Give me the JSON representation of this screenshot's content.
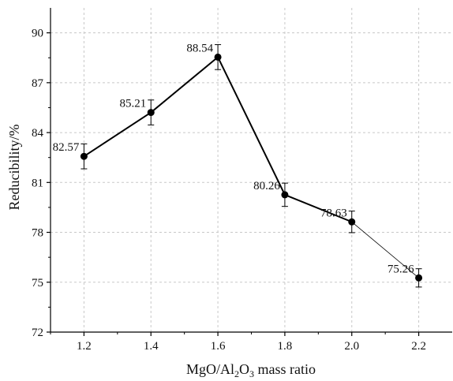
{
  "chart_data": {
    "type": "line",
    "title": "",
    "xlabel_parts": [
      "MgO/Al",
      "2",
      "O",
      "3",
      " mass ratio"
    ],
    "ylabel": "Reducibility/%",
    "xlim": [
      1.1,
      2.3
    ],
    "ylim": [
      72,
      91.5
    ],
    "x_ticks": [
      "1.2",
      "1.4",
      "1.6",
      "1.8",
      "2.0",
      "2.2"
    ],
    "y_ticks": [
      "72",
      "75",
      "78",
      "81",
      "84",
      "87",
      "90"
    ],
    "grid": true,
    "legend": "none",
    "series": [
      {
        "x": [
          1.2,
          1.4,
          1.6,
          1.8,
          2.0,
          2.2
        ],
        "values": [
          82.57,
          85.21,
          88.54,
          80.26,
          78.63,
          75.26
        ],
        "labels": [
          "82.57",
          "85.21",
          "88.54",
          "80.26",
          "78.63",
          "75.26"
        ],
        "error": [
          0.75,
          0.75,
          0.75,
          0.7,
          0.65,
          0.55
        ],
        "color": "#000000"
      }
    ]
  }
}
